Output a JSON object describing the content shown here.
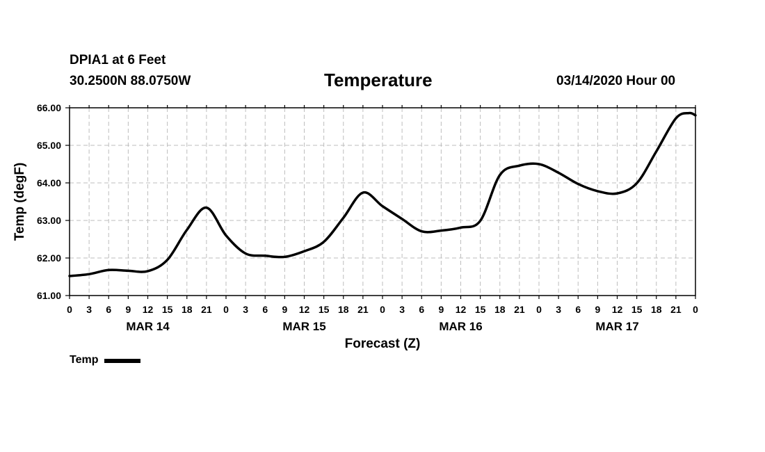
{
  "header": {
    "station": "DPIA1 at 6 Feet",
    "coords": "30.2500N 88.0750W",
    "title": "Temperature",
    "issued": "03/14/2020 Hour 00"
  },
  "chart_data": {
    "type": "line",
    "title": "Temperature",
    "xlabel": "Forecast (Z)",
    "ylabel": "Temp (degF)",
    "ylim": [
      61.0,
      66.0
    ],
    "yticks": [
      "61.00",
      "62.00",
      "63.00",
      "64.00",
      "65.00",
      "66.00"
    ],
    "xlim_hours": [
      0,
      96
    ],
    "xtick_labels": [
      "0",
      "3",
      "6",
      "9",
      "12",
      "15",
      "18",
      "21",
      "0",
      "3",
      "6",
      "9",
      "12",
      "15",
      "18",
      "21",
      "0",
      "3",
      "6",
      "9",
      "12",
      "15",
      "18",
      "21",
      "0",
      "3",
      "6",
      "9",
      "12",
      "15",
      "18",
      "21",
      "0"
    ],
    "date_labels": [
      {
        "label": "MAR 14",
        "hour": 12
      },
      {
        "label": "MAR 15",
        "hour": 36
      },
      {
        "label": "MAR 16",
        "hour": 60
      },
      {
        "label": "MAR 17",
        "hour": 84
      }
    ],
    "grid": true,
    "legend": "bottom-left",
    "series": [
      {
        "name": "Temp",
        "color": "#000000",
        "x": [
          0,
          3,
          6,
          9,
          12,
          15,
          18,
          21,
          24,
          27,
          30,
          33,
          36,
          39,
          42,
          45,
          48,
          51,
          54,
          57,
          60,
          63,
          66,
          69,
          72,
          75,
          78,
          81,
          84,
          87,
          90,
          93,
          95,
          96
        ],
        "values": [
          61.52,
          61.57,
          61.68,
          61.66,
          61.65,
          61.95,
          62.75,
          63.34,
          62.6,
          62.12,
          62.06,
          62.03,
          62.18,
          62.43,
          63.07,
          63.74,
          63.38,
          63.04,
          62.71,
          62.73,
          62.81,
          62.99,
          64.21,
          64.46,
          64.5,
          64.27,
          63.97,
          63.78,
          63.72,
          63.99,
          64.84,
          65.72,
          65.86,
          65.8
        ]
      }
    ]
  },
  "legend": {
    "label": "Temp"
  }
}
